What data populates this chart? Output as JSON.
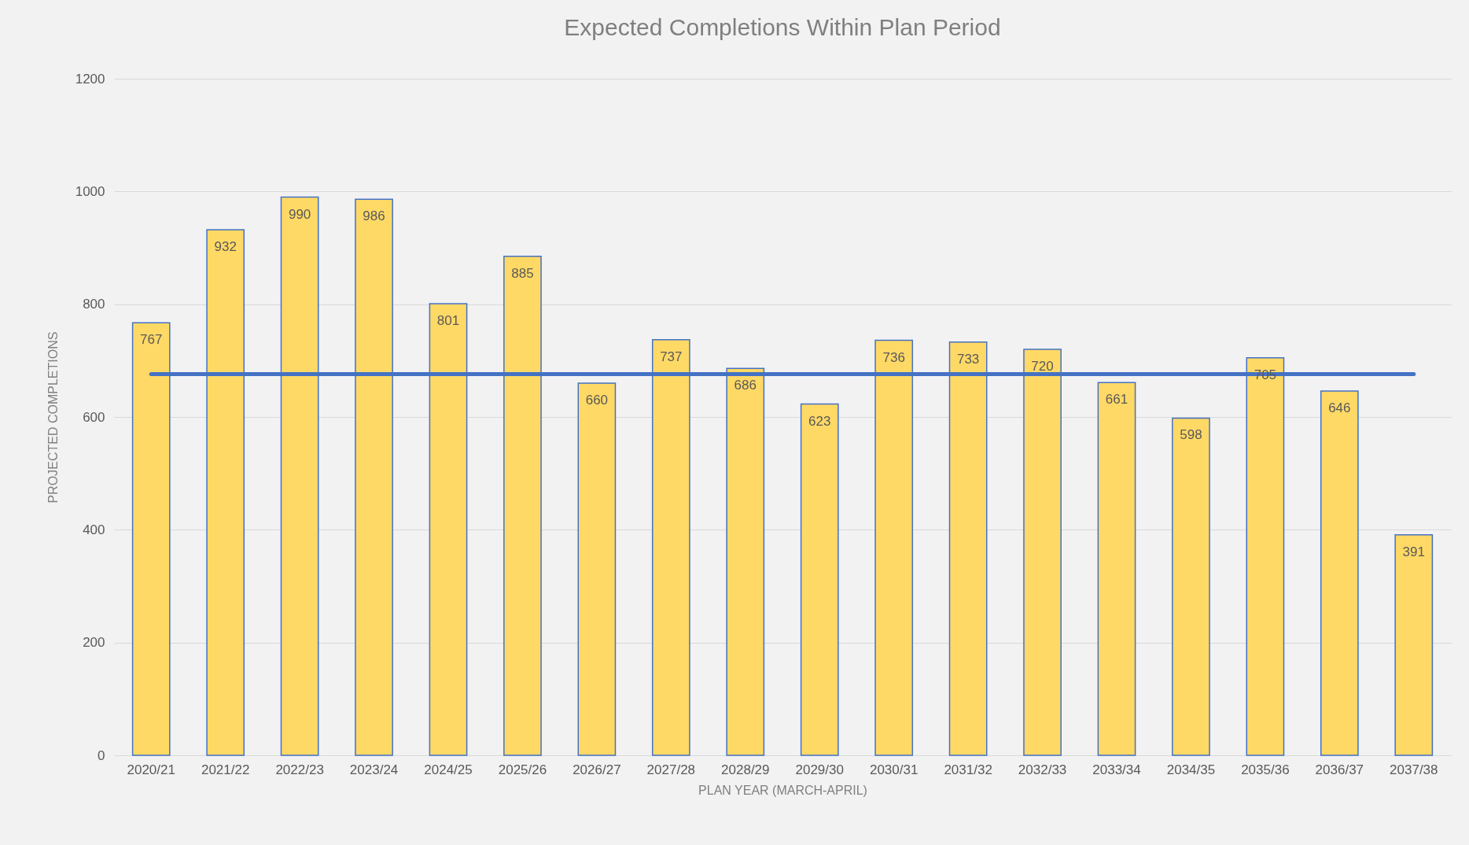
{
  "chart_data": {
    "type": "bar",
    "title": "Expected Completions Within Plan Period",
    "xlabel": "PLAN YEAR (MARCH-APRIL)",
    "ylabel": "PROJECTED COMPLETIONS",
    "categories": [
      "2020/21",
      "2021/22",
      "2022/23",
      "2023/24",
      "2024/25",
      "2025/26",
      "2026/27",
      "2027/28",
      "2028/29",
      "2029/30",
      "2030/31",
      "2031/32",
      "2032/33",
      "2033/34",
      "2034/35",
      "2035/36",
      "2036/37",
      "2037/38"
    ],
    "values": [
      767,
      932,
      990,
      986,
      801,
      885,
      660,
      737,
      686,
      623,
      736,
      733,
      720,
      661,
      598,
      705,
      646,
      391
    ],
    "color": "#ffd966",
    "ylim": [
      0,
      1200
    ],
    "yticks": [
      0,
      200,
      400,
      600,
      800,
      1000,
      1200
    ],
    "grid": "y",
    "data_labels": true,
    "ref_lines": [
      {
        "axis": "y",
        "value": 676,
        "color": "#4472c4",
        "line_style": "solid"
      }
    ]
  }
}
